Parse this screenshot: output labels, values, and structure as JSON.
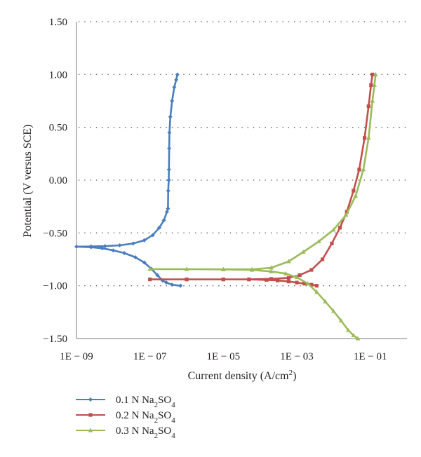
{
  "chart_data": {
    "type": "line",
    "title": "",
    "xlabel": "Current density (A/cm",
    "xlabel_sup": "2",
    "xlabel_end": ")",
    "ylabel": "Potential (V versus SCE)",
    "xscale": "log",
    "xlim": [
      1e-09,
      1
    ],
    "ylim": [
      -1.5,
      1.5
    ],
    "x_ticks": [
      1e-09,
      1e-07,
      1e-05,
      0.001,
      0.1
    ],
    "x_tick_labels": [
      "1E − 09",
      "1E − 07",
      "1E − 05",
      "1E − 03",
      "1E − 01"
    ],
    "y_ticks": [
      -1.5,
      -1.0,
      -0.5,
      0.0,
      0.5,
      1.0,
      1.5
    ],
    "y_tick_labels": [
      "−1.50",
      "−1.00",
      "−0.50",
      "0.00",
      "0.50",
      "1.00",
      "1.50"
    ],
    "grid": "horizontal dotted",
    "legend_position": "bottom-left",
    "series": [
      {
        "name": "0.1 N Na",
        "sub": "2",
        "name_mid": "SO",
        "sub2": "4",
        "color": "#4a7ebb",
        "marker": "diamond",
        "points": [
          [
            6.8e-07,
            -1.0
          ],
          [
            4e-07,
            -0.99
          ],
          [
            2.8e-07,
            -0.97
          ],
          [
            2.2e-07,
            -0.95
          ],
          [
            1.6e-07,
            -0.9
          ],
          [
            1.1e-07,
            -0.84
          ],
          [
            7e-08,
            -0.78
          ],
          [
            4e-08,
            -0.73
          ],
          [
            2e-08,
            -0.69
          ],
          [
            1e-08,
            -0.665
          ],
          [
            5e-09,
            -0.645
          ],
          [
            2.5e-09,
            -0.635
          ],
          [
            1e-09,
            -0.63
          ],
          [
            2.5e-09,
            -0.628
          ],
          [
            6e-09,
            -0.625
          ],
          [
            1.5e-08,
            -0.617
          ],
          [
            3.5e-08,
            -0.6
          ],
          [
            7e-08,
            -0.57
          ],
          [
            1.2e-07,
            -0.52
          ],
          [
            1.8e-07,
            -0.45
          ],
          [
            2.4e-07,
            -0.38
          ],
          [
            2.9e-07,
            -0.3
          ],
          [
            3.1e-07,
            -0.27
          ],
          [
            3.15e-07,
            -0.1
          ],
          [
            3.25e-07,
            0.0
          ],
          [
            3.3e-07,
            0.1
          ],
          [
            3.35e-07,
            0.3
          ],
          [
            3.4e-07,
            0.45
          ],
          [
            3.6e-07,
            0.6
          ],
          [
            4e-07,
            0.75
          ],
          [
            4.6e-07,
            0.88
          ],
          [
            5.2e-07,
            0.95
          ],
          [
            5.6e-07,
            1.0
          ]
        ]
      },
      {
        "name": "0.2 N Na",
        "sub": "2",
        "name_mid": "SO",
        "sub2": "4",
        "color": "#c0504d",
        "marker": "square",
        "points": [
          [
            0.0035,
            -1.0
          ],
          [
            0.0025,
            -0.99
          ],
          [
            0.0016,
            -0.98
          ],
          [
            0.001,
            -0.97
          ],
          [
            0.0006,
            -0.96
          ],
          [
            0.0003,
            -0.95
          ],
          [
            0.00015,
            -0.945
          ],
          [
            5e-05,
            -0.94
          ],
          [
            1e-05,
            -0.94
          ],
          [
            1e-06,
            -0.94
          ],
          [
            1e-07,
            -0.94
          ],
          [
            1e-06,
            -0.94
          ],
          [
            1e-05,
            -0.94
          ],
          [
            5e-05,
            -0.94
          ],
          [
            0.0002,
            -0.935
          ],
          [
            0.0006,
            -0.925
          ],
          [
            0.0012,
            -0.9
          ],
          [
            0.0025,
            -0.85
          ],
          [
            0.005,
            -0.75
          ],
          [
            0.009,
            -0.6
          ],
          [
            0.015,
            -0.45
          ],
          [
            0.023,
            -0.3
          ],
          [
            0.035,
            -0.1
          ],
          [
            0.05,
            0.1
          ],
          [
            0.07,
            0.4
          ],
          [
            0.09,
            0.7
          ],
          [
            0.105,
            0.9
          ],
          [
            0.115,
            1.0
          ]
        ]
      },
      {
        "name": "0.3 N Na",
        "sub": "2",
        "name_mid": "SO",
        "sub2": "4",
        "color": "#9bbb59",
        "marker": "triangle",
        "points": [
          [
            0.046,
            -1.5
          ],
          [
            0.035,
            -1.47
          ],
          [
            0.025,
            -1.42
          ],
          [
            0.016,
            -1.33
          ],
          [
            0.01,
            -1.24
          ],
          [
            0.006,
            -1.15
          ],
          [
            0.0035,
            -1.06
          ],
          [
            0.002,
            -0.98
          ],
          [
            0.001,
            -0.92
          ],
          [
            0.0005,
            -0.885
          ],
          [
            0.0002,
            -0.865
          ],
          [
            6e-05,
            -0.85
          ],
          [
            1e-05,
            -0.845
          ],
          [
            1e-06,
            -0.843
          ],
          [
            1e-07,
            -0.843
          ],
          [
            1e-06,
            -0.843
          ],
          [
            1e-05,
            -0.845
          ],
          [
            6e-05,
            -0.845
          ],
          [
            0.0002,
            -0.83
          ],
          [
            0.0006,
            -0.77
          ],
          [
            0.0015,
            -0.68
          ],
          [
            0.004,
            -0.58
          ],
          [
            0.01,
            -0.47
          ],
          [
            0.022,
            -0.33
          ],
          [
            0.04,
            -0.15
          ],
          [
            0.065,
            0.1
          ],
          [
            0.09,
            0.4
          ],
          [
            0.115,
            0.75
          ],
          [
            0.13,
            0.9
          ],
          [
            0.14,
            1.0
          ]
        ]
      }
    ]
  }
}
